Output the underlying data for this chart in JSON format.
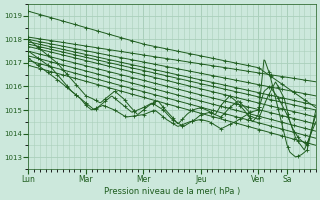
{
  "bg_color": "#cce8dc",
  "line_color": "#1e5c1e",
  "grid_color": "#aacfbb",
  "xlabel": "Pression niveau de la mer( hPa )",
  "xlabel_color": "#1e5c1e",
  "tick_color": "#1e5c1e",
  "ylim": [
    1012.5,
    1019.5
  ],
  "yticks": [
    1013,
    1014,
    1015,
    1016,
    1017,
    1018,
    1019
  ],
  "day_labels": [
    "Lun",
    "Mar",
    "Mer",
    "Jeu",
    "Ven",
    "Sa"
  ],
  "day_positions": [
    0,
    0.2,
    0.4,
    0.6,
    0.8,
    0.9
  ],
  "xlim": [
    0.0,
    1.0
  ]
}
